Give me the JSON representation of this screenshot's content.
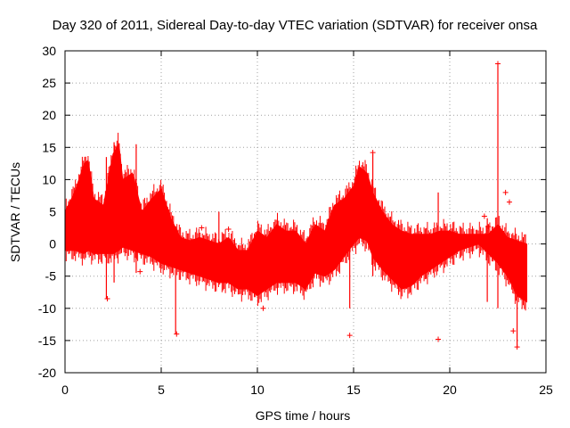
{
  "chart_data": {
    "type": "scatter",
    "title": "Day 320 of 2011, Sidereal Day-to-day VTEC variation (SDTVAR) for receiver onsa",
    "xlabel": "GPS time / hours",
    "ylabel": "SDTVAR / TECUs",
    "xlim": [
      0,
      25
    ],
    "ylim": [
      -20,
      30
    ],
    "x_ticks": [
      0,
      5,
      10,
      15,
      20,
      25
    ],
    "y_ticks": [
      -20,
      -15,
      -10,
      -5,
      0,
      5,
      10,
      15,
      20,
      25,
      30
    ],
    "grid": true,
    "marker": "+",
    "color": "#ff0000",
    "envelope": {
      "x": [
        0,
        0.5,
        1,
        1.2,
        1.5,
        2,
        2.5,
        2.8,
        3,
        3.5,
        4,
        4.5,
        5,
        5.5,
        6,
        6.5,
        7,
        7.5,
        8,
        8.5,
        9,
        9.5,
        10,
        10.5,
        11,
        11.5,
        12,
        12.5,
        13,
        13.5,
        14,
        14.5,
        15,
        15.3,
        15.7,
        16,
        16.5,
        17,
        17.5,
        18,
        18.5,
        19,
        19.5,
        20,
        20.5,
        21,
        21.5,
        22,
        22.5,
        23,
        23.5,
        24
      ],
      "upper": [
        5,
        8,
        12.5,
        13,
        7,
        6,
        14,
        15.5,
        10,
        11,
        5,
        7,
        8.5,
        4,
        1,
        0.5,
        1,
        0.5,
        0,
        1,
        -1,
        -1,
        2,
        1,
        3,
        2,
        2,
        0,
        3,
        2,
        6,
        7,
        9,
        12,
        11,
        8,
        5,
        3,
        2,
        1.5,
        1.5,
        1.5,
        2,
        2,
        1.5,
        1.5,
        1.5,
        1.5,
        3,
        1,
        0.5,
        0
      ],
      "lower": [
        -1,
        -1,
        -1.5,
        -1,
        -1.5,
        -1.5,
        -1.5,
        -1,
        -0.5,
        -1,
        -1.5,
        -2,
        -3,
        -3.5,
        -4,
        -4.5,
        -5,
        -5.5,
        -6,
        -6,
        -7,
        -7,
        -8,
        -7,
        -6,
        -6,
        -6,
        -7,
        -4.5,
        -5,
        -4,
        -2,
        0,
        1,
        0.5,
        -2,
        -4,
        -5.5,
        -7,
        -6.5,
        -5,
        -4,
        -3,
        -2,
        -1,
        -0.5,
        0,
        -1.5,
        -3,
        -5,
        -8,
        -9
      ]
    },
    "trend": {
      "x": [
        0,
        1,
        2,
        3,
        4,
        5,
        6,
        7,
        8,
        9,
        10,
        11,
        12,
        13,
        14,
        15,
        15.5,
        16,
        17,
        18,
        19,
        20,
        21,
        22,
        23,
        24
      ],
      "y": [
        1,
        1.5,
        1,
        0.5,
        0.5,
        -0.5,
        -1.5,
        -2.5,
        -3,
        -4,
        -4.5,
        -3,
        -2.5,
        -1.5,
        0,
        2,
        3,
        2,
        0,
        -3.5,
        -2.5,
        -1,
        0,
        0.5,
        -1,
        -2
      ]
    },
    "outliers": [
      {
        "x": 2.2,
        "y": -8.5
      },
      {
        "x": 3.9,
        "y": -4.3
      },
      {
        "x": 5.8,
        "y": -14
      },
      {
        "x": 10.3,
        "y": -10
      },
      {
        "x": 14.8,
        "y": -14.2
      },
      {
        "x": 19.4,
        "y": -14.8
      },
      {
        "x": 22.5,
        "y": 28
      },
      {
        "x": 22.9,
        "y": 8
      },
      {
        "x": 23.1,
        "y": 6.5
      },
      {
        "x": 21.8,
        "y": 4.3
      },
      {
        "x": 23.5,
        "y": -16
      },
      {
        "x": 23.3,
        "y": -13.5
      },
      {
        "x": 22.0,
        "y": 2.7
      },
      {
        "x": 7.1,
        "y": 2.5
      },
      {
        "x": 8.5,
        "y": 2.3
      },
      {
        "x": 16.0,
        "y": 14.2
      }
    ],
    "spikes": [
      {
        "x": 2.15,
        "y0": -8.5,
        "y1": 13.5
      },
      {
        "x": 2.55,
        "y0": -6,
        "y1": 15.8
      },
      {
        "x": 3.7,
        "y0": -4.5,
        "y1": 15.5
      },
      {
        "x": 5.75,
        "y0": -14,
        "y1": -4
      },
      {
        "x": 8.0,
        "y0": -6,
        "y1": 5
      },
      {
        "x": 14.8,
        "y0": -10,
        "y1": 4
      },
      {
        "x": 16.0,
        "y0": -5,
        "y1": 14
      },
      {
        "x": 19.4,
        "y0": -3,
        "y1": 8
      },
      {
        "x": 21.95,
        "y0": -9,
        "y1": 4
      },
      {
        "x": 22.5,
        "y0": -10,
        "y1": 28
      },
      {
        "x": 23.5,
        "y0": -16,
        "y1": -6
      }
    ]
  }
}
